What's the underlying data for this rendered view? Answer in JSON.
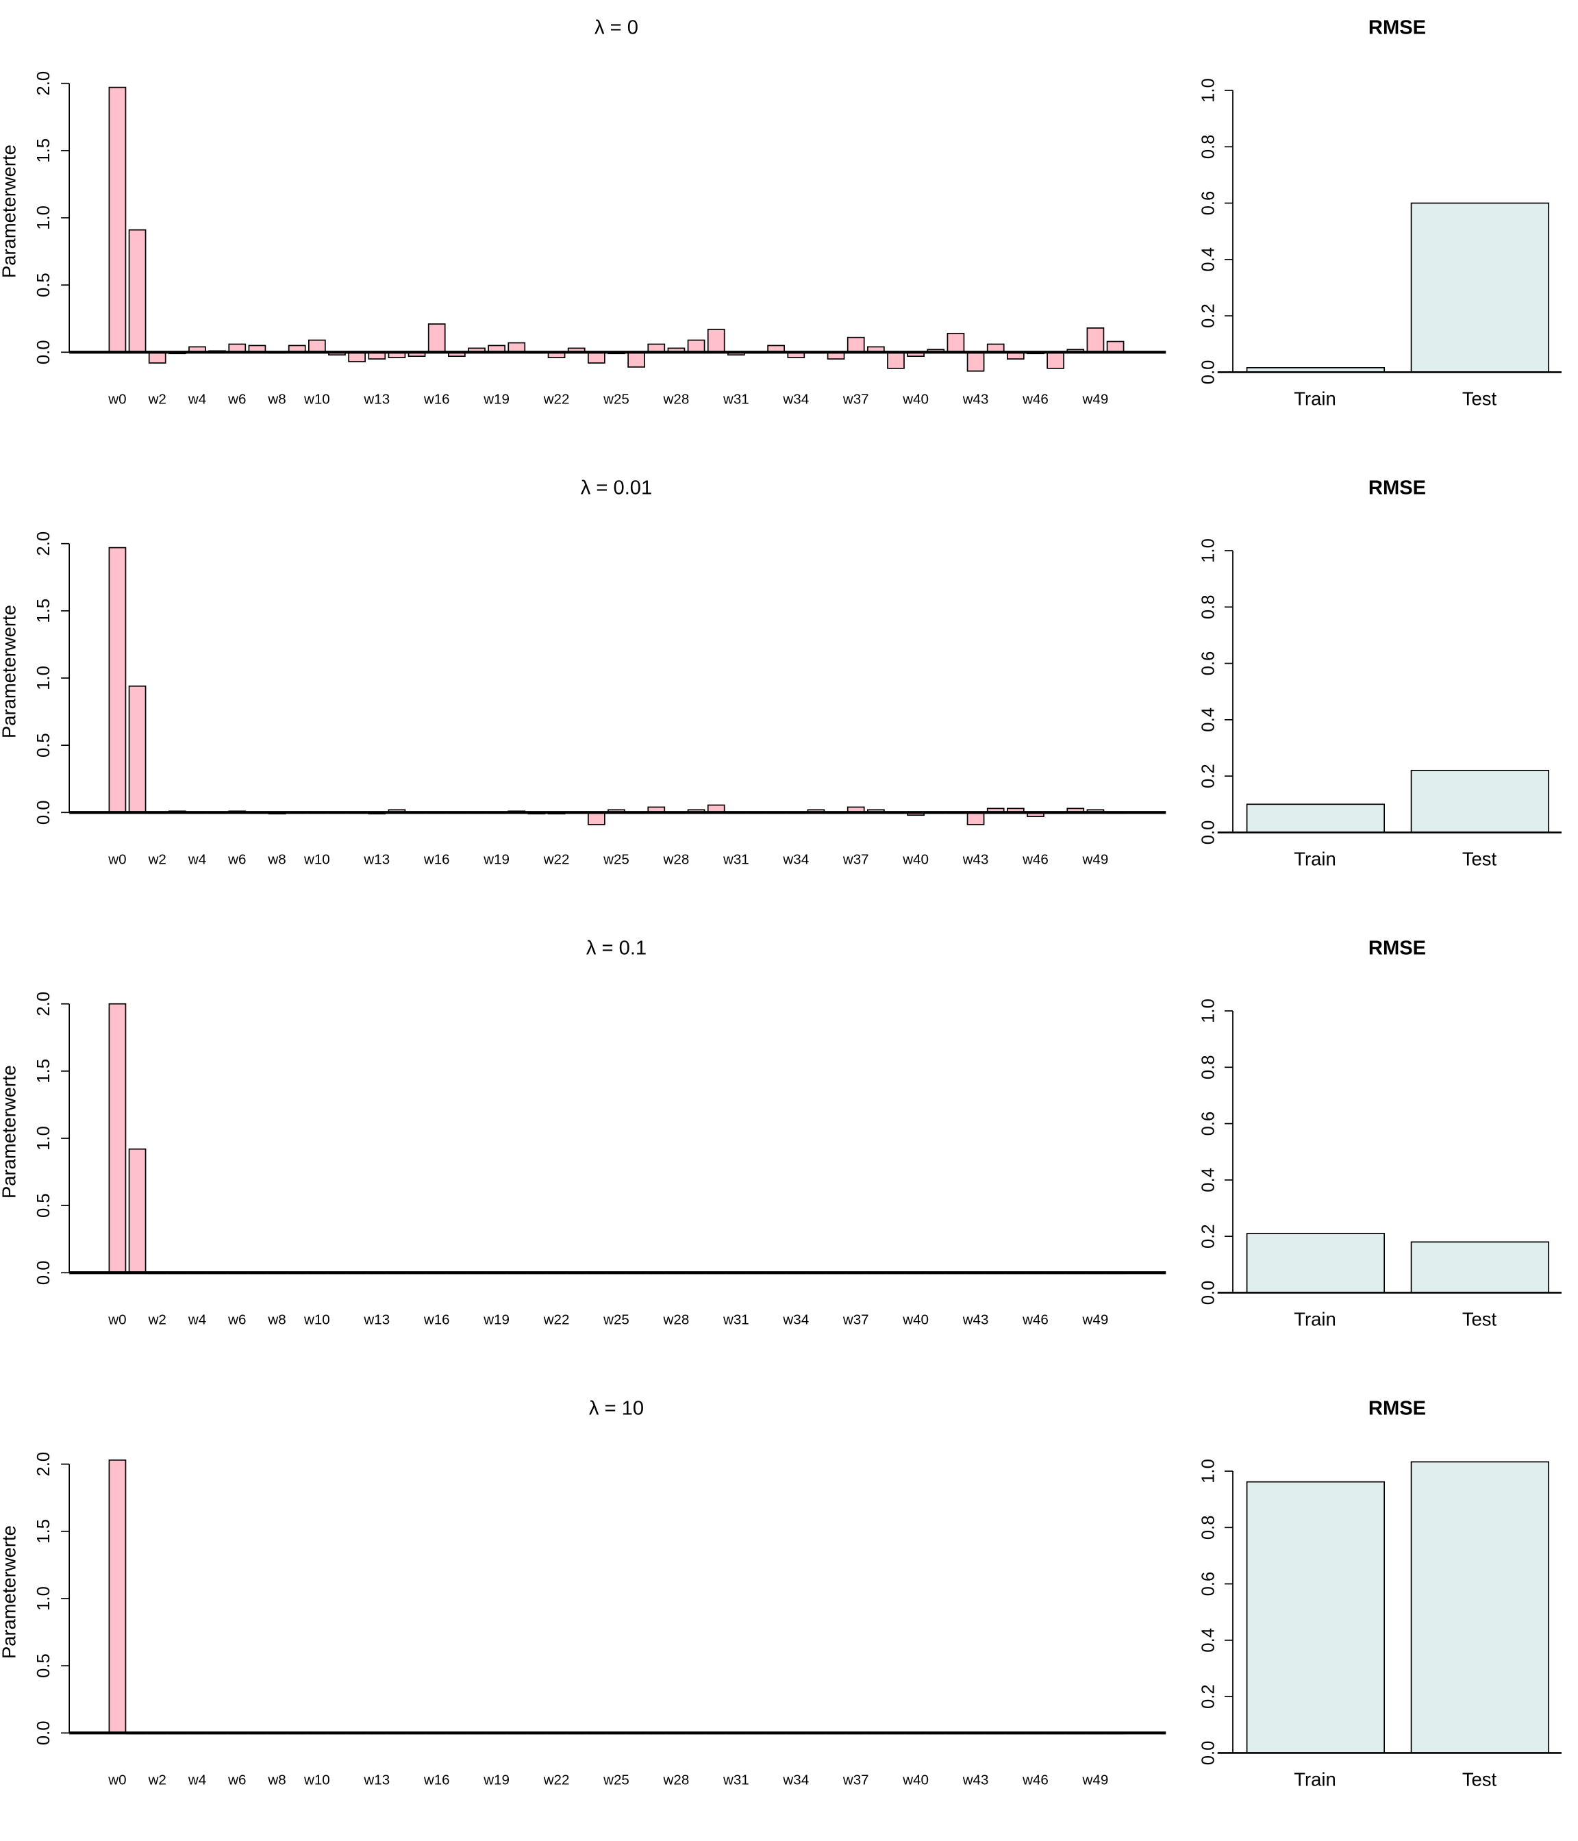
{
  "chart_data": [
    {
      "type": "bar",
      "title": "λ = 0",
      "ylabel": "Parameterwerte",
      "ylim": [
        -0.15,
        2.0
      ],
      "yticks": [
        "0.0",
        "0.5",
        "1.0",
        "1.5",
        "2.0"
      ],
      "bar_color": "#ffc0cb",
      "categories_shown": [
        "w0",
        "w2",
        "w4",
        "w6",
        "w8",
        "w10",
        "w13",
        "w16",
        "w19",
        "w22",
        "w25",
        "w28",
        "w31",
        "w34",
        "w37",
        "w40",
        "w43",
        "w46",
        "w49"
      ],
      "values": [
        1.97,
        0.91,
        -0.08,
        -0.01,
        0.04,
        0.01,
        0.06,
        0.05,
        0.0,
        0.05,
        0.09,
        -0.02,
        -0.07,
        -0.05,
        -0.04,
        -0.03,
        0.21,
        -0.03,
        0.03,
        0.05,
        0.07,
        0.0,
        -0.04,
        0.03,
        -0.08,
        -0.01,
        -0.11,
        0.06,
        0.03,
        0.09,
        0.17,
        -0.02,
        0.0,
        0.05,
        -0.04,
        0.0,
        -0.05,
        0.11,
        0.04,
        -0.12,
        -0.03,
        0.02,
        0.14,
        -0.14,
        0.06,
        -0.05,
        -0.01,
        -0.12,
        0.02,
        0.18,
        0.08
      ]
    },
    {
      "type": "bar",
      "title": "RMSE",
      "ylim": [
        0,
        1.0
      ],
      "yticks": [
        "0.0",
        "0.2",
        "0.4",
        "0.6",
        "0.8",
        "1.0"
      ],
      "bar_color": "#e0eeee",
      "categories": [
        "Train",
        "Test"
      ],
      "values": [
        0.016,
        0.6
      ]
    },
    {
      "type": "bar",
      "title": "λ = 0.01",
      "ylabel": "Parameterwerte",
      "ylim": [
        -0.15,
        2.0
      ],
      "yticks": [
        "0.0",
        "0.5",
        "1.0",
        "1.5",
        "2.0"
      ],
      "bar_color": "#ffc0cb",
      "categories_shown": [
        "w0",
        "w2",
        "w4",
        "w6",
        "w8",
        "w10",
        "w13",
        "w16",
        "w19",
        "w22",
        "w25",
        "w28",
        "w31",
        "w34",
        "w37",
        "w40",
        "w43",
        "w46",
        "w49"
      ],
      "values": [
        1.97,
        0.94,
        0,
        0.01,
        0,
        0,
        0.01,
        0,
        -0.01,
        0,
        0,
        0,
        0,
        -0.01,
        0.02,
        0,
        0,
        0,
        0,
        0,
        0.01,
        -0.01,
        -0.01,
        0,
        -0.09,
        0.02,
        0,
        0.04,
        0,
        0.02,
        0.055,
        0,
        0,
        0,
        0,
        0.02,
        0,
        0.04,
        0.02,
        0,
        -0.02,
        0,
        0,
        -0.09,
        0.03,
        0.03,
        -0.03,
        0,
        0.03,
        0.02,
        0
      ]
    },
    {
      "type": "bar",
      "title": "RMSE",
      "ylim": [
        0,
        1.0
      ],
      "yticks": [
        "0.0",
        "0.2",
        "0.4",
        "0.6",
        "0.8",
        "1.0"
      ],
      "bar_color": "#e0eeee",
      "categories": [
        "Train",
        "Test"
      ],
      "values": [
        0.1,
        0.22
      ]
    },
    {
      "type": "bar",
      "title": "λ = 0.1",
      "ylabel": "Parameterwerte",
      "ylim": [
        -0.15,
        2.0
      ],
      "yticks": [
        "0.0",
        "0.5",
        "1.0",
        "1.5",
        "2.0"
      ],
      "bar_color": "#ffc0cb",
      "categories_shown": [
        "w0",
        "w2",
        "w4",
        "w6",
        "w8",
        "w10",
        "w13",
        "w16",
        "w19",
        "w22",
        "w25",
        "w28",
        "w31",
        "w34",
        "w37",
        "w40",
        "w43",
        "w46",
        "w49"
      ],
      "values": [
        2.0,
        0.92,
        0,
        0,
        0,
        0,
        0,
        0,
        0,
        0,
        0,
        0,
        0,
        0,
        0,
        0,
        0,
        0,
        0,
        0,
        0,
        0,
        0,
        0,
        0,
        0,
        0,
        0,
        0,
        0,
        0,
        0,
        0,
        0,
        0,
        0,
        0,
        0,
        0,
        0,
        0,
        0,
        0,
        0,
        0,
        0,
        0,
        0,
        0,
        0,
        0
      ]
    },
    {
      "type": "bar",
      "title": "RMSE",
      "ylim": [
        0,
        1.0
      ],
      "yticks": [
        "0.0",
        "0.2",
        "0.4",
        "0.6",
        "0.8",
        "1.0"
      ],
      "bar_color": "#e0eeee",
      "categories": [
        "Train",
        "Test"
      ],
      "values": [
        0.21,
        0.18
      ]
    },
    {
      "type": "bar",
      "title": "λ = 10",
      "ylabel": "Parameterwerte",
      "ylim": [
        -0.15,
        2.0
      ],
      "yticks": [
        "0.0",
        "0.5",
        "1.0",
        "1.5",
        "2.0"
      ],
      "bar_color": "#ffc0cb",
      "categories_shown": [
        "w0",
        "w2",
        "w4",
        "w6",
        "w8",
        "w10",
        "w13",
        "w16",
        "w19",
        "w22",
        "w25",
        "w28",
        "w31",
        "w34",
        "w37",
        "w40",
        "w43",
        "w46",
        "w49"
      ],
      "values": [
        2.03,
        0,
        0,
        0,
        0,
        0,
        0,
        0,
        0,
        0,
        0,
        0,
        0,
        0,
        0,
        0,
        0,
        0,
        0,
        0,
        0,
        0,
        0,
        0,
        0,
        0,
        0,
        0,
        0,
        0,
        0,
        0,
        0,
        0,
        0,
        0,
        0,
        0,
        0,
        0,
        0,
        0,
        0,
        0,
        0,
        0,
        0,
        0,
        0,
        0,
        0
      ]
    },
    {
      "type": "bar",
      "title": "RMSE",
      "ylim": [
        0,
        1.0
      ],
      "yticks": [
        "0.0",
        "0.2",
        "0.4",
        "0.6",
        "0.8",
        "1.0"
      ],
      "bar_color": "#e0eeee",
      "categories": [
        "Train",
        "Test"
      ],
      "values": [
        0.962,
        1.033
      ]
    }
  ]
}
